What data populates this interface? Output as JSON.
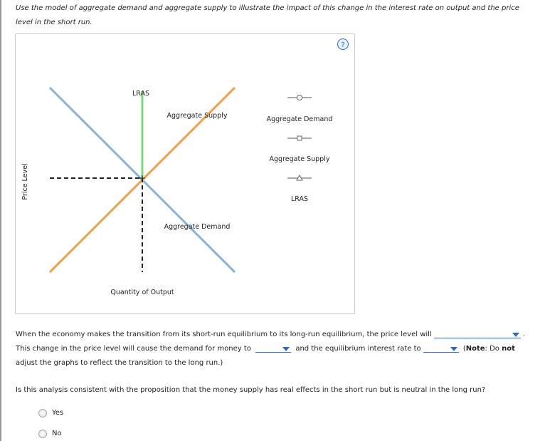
{
  "instruction": "Use the model of aggregate demand and aggregate supply to illustrate the impact of this change in the interest rate on output and the price level in the short run.",
  "graph": {
    "help": "?",
    "y_axis_label": "Price Level",
    "x_axis_label": "Quantity of Output",
    "curve_labels": {
      "lras": "LRAS",
      "aggregate_supply": "Aggregate Supply",
      "aggregate_demand": "Aggregate Demand"
    },
    "legend": [
      "Aggregate Demand",
      "Aggregate Supply",
      "LRAS"
    ]
  },
  "question1": {
    "part1": "When the economy makes the transition from its short-run equilibrium to its long-run equilibrium, the price level will",
    "part2": ". This change in the price level will cause the demand for money to",
    "part3": "and the equilibrium interest rate to",
    "note": [
      "(",
      "Note",
      ": Do",
      "not",
      "adjust the graphs to reflect the transition to the long run.)"
    ]
  },
  "question2": {
    "text": "Is this analysis consistent with the proposition that the money supply has real effects in the short run but is neutral in the long run?",
    "options": [
      "Yes",
      "No"
    ]
  }
}
